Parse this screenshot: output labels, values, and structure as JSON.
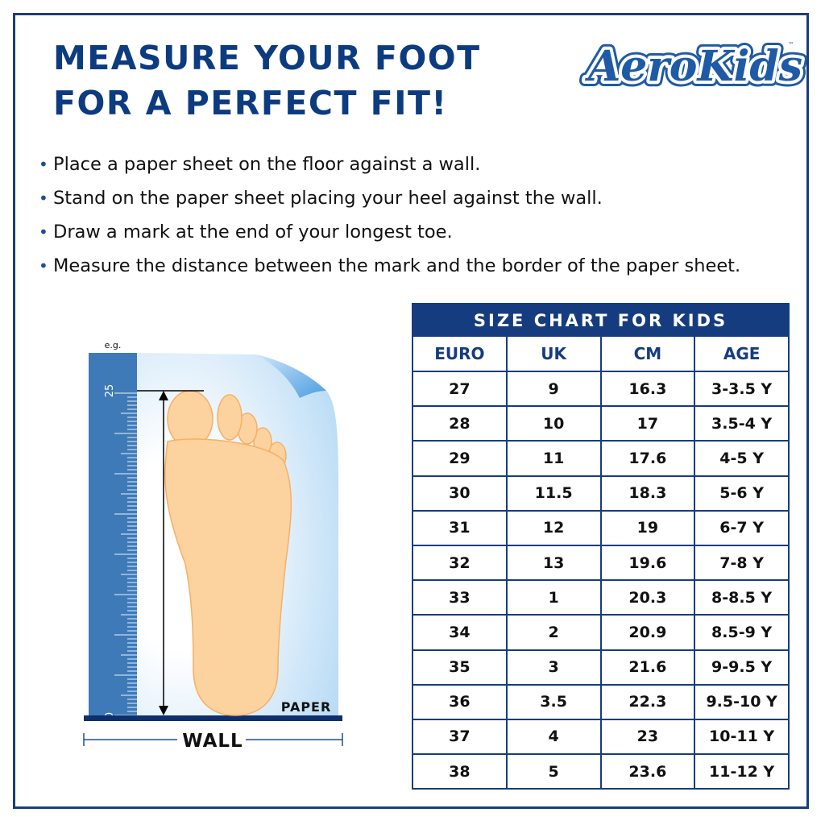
{
  "title_lines": [
    "MEASURE YOUR FOOT",
    "FOR A PERFECT FIT!"
  ],
  "logo": {
    "text": "AeroKids",
    "trademark": "™"
  },
  "instructions": [
    "Place a paper sheet on the floor against a wall.",
    "Stand on the paper sheet placing your heel against the wall.",
    "Draw a mark at the end of your longest toe.",
    "Measure the distance between the mark and the border of the paper sheet."
  ],
  "illustration": {
    "example_label": "e.g.",
    "ruler_top": "25",
    "ruler_bottom": "0",
    "paper_label": "PAPER",
    "wall_label": "WALL"
  },
  "size_chart": {
    "title": "SIZE CHART FOR KIDS",
    "columns": [
      "EURO",
      "UK",
      "CM",
      "AGE"
    ],
    "rows": [
      [
        "27",
        "9",
        "16.3",
        "3-3.5 Y"
      ],
      [
        "28",
        "10",
        "17",
        "3.5-4 Y"
      ],
      [
        "29",
        "11",
        "17.6",
        "4-5 Y"
      ],
      [
        "30",
        "11.5",
        "18.3",
        "5-6 Y"
      ],
      [
        "31",
        "12",
        "19",
        "6-7 Y"
      ],
      [
        "32",
        "13",
        "19.6",
        "7-8 Y"
      ],
      [
        "33",
        "1",
        "20.3",
        "8-8.5 Y"
      ],
      [
        "34",
        "2",
        "20.9",
        "8.5-9 Y"
      ],
      [
        "35",
        "3",
        "21.6",
        "9-9.5 Y"
      ],
      [
        "36",
        "3.5",
        "22.3",
        "9.5-10 Y"
      ],
      [
        "37",
        "4",
        "23",
        "10-11 Y"
      ],
      [
        "38",
        "5",
        "23.6",
        "11-12 Y"
      ]
    ]
  },
  "colors": {
    "navy": "#163c80",
    "ruler": "#3f7ab8",
    "foot": "#fcd29f",
    "foot_outline": "#f5b065"
  }
}
